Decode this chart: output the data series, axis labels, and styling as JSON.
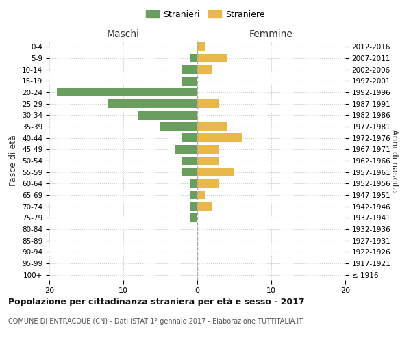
{
  "age_groups": [
    "100+",
    "95-99",
    "90-94",
    "85-89",
    "80-84",
    "75-79",
    "70-74",
    "65-69",
    "60-64",
    "55-59",
    "50-54",
    "45-49",
    "40-44",
    "35-39",
    "30-34",
    "25-29",
    "20-24",
    "15-19",
    "10-14",
    "5-9",
    "0-4"
  ],
  "birth_years": [
    "≤ 1916",
    "1917-1921",
    "1922-1926",
    "1927-1931",
    "1932-1936",
    "1937-1941",
    "1942-1946",
    "1947-1951",
    "1952-1956",
    "1957-1961",
    "1962-1966",
    "1967-1971",
    "1972-1976",
    "1977-1981",
    "1982-1986",
    "1987-1991",
    "1992-1996",
    "1997-2001",
    "2002-2006",
    "2007-2011",
    "2012-2016"
  ],
  "males": [
    0,
    0,
    0,
    0,
    0,
    1,
    1,
    1,
    1,
    2,
    2,
    3,
    2,
    5,
    8,
    12,
    19,
    2,
    2,
    1,
    0
  ],
  "females": [
    0,
    0,
    0,
    0,
    0,
    0,
    2,
    1,
    3,
    5,
    3,
    3,
    6,
    4,
    0,
    3,
    0,
    0,
    2,
    4,
    1
  ],
  "male_color": "#6a9e5e",
  "female_color": "#e8b84b",
  "title": "Popolazione per cittadinanza straniera per età e sesso - 2017",
  "subtitle": "COMUNE DI ENTRACQUE (CN) - Dati ISTAT 1° gennaio 2017 - Elaborazione TUTTITALIA.IT",
  "legend_male": "Stranieri",
  "legend_female": "Straniere",
  "xlabel_left": "Maschi",
  "xlabel_right": "Femmine",
  "ylabel_left": "Fasce di età",
  "ylabel_right": "Anni di nascita",
  "xlim": 20,
  "background_color": "#ffffff",
  "grid_color": "#cccccc"
}
